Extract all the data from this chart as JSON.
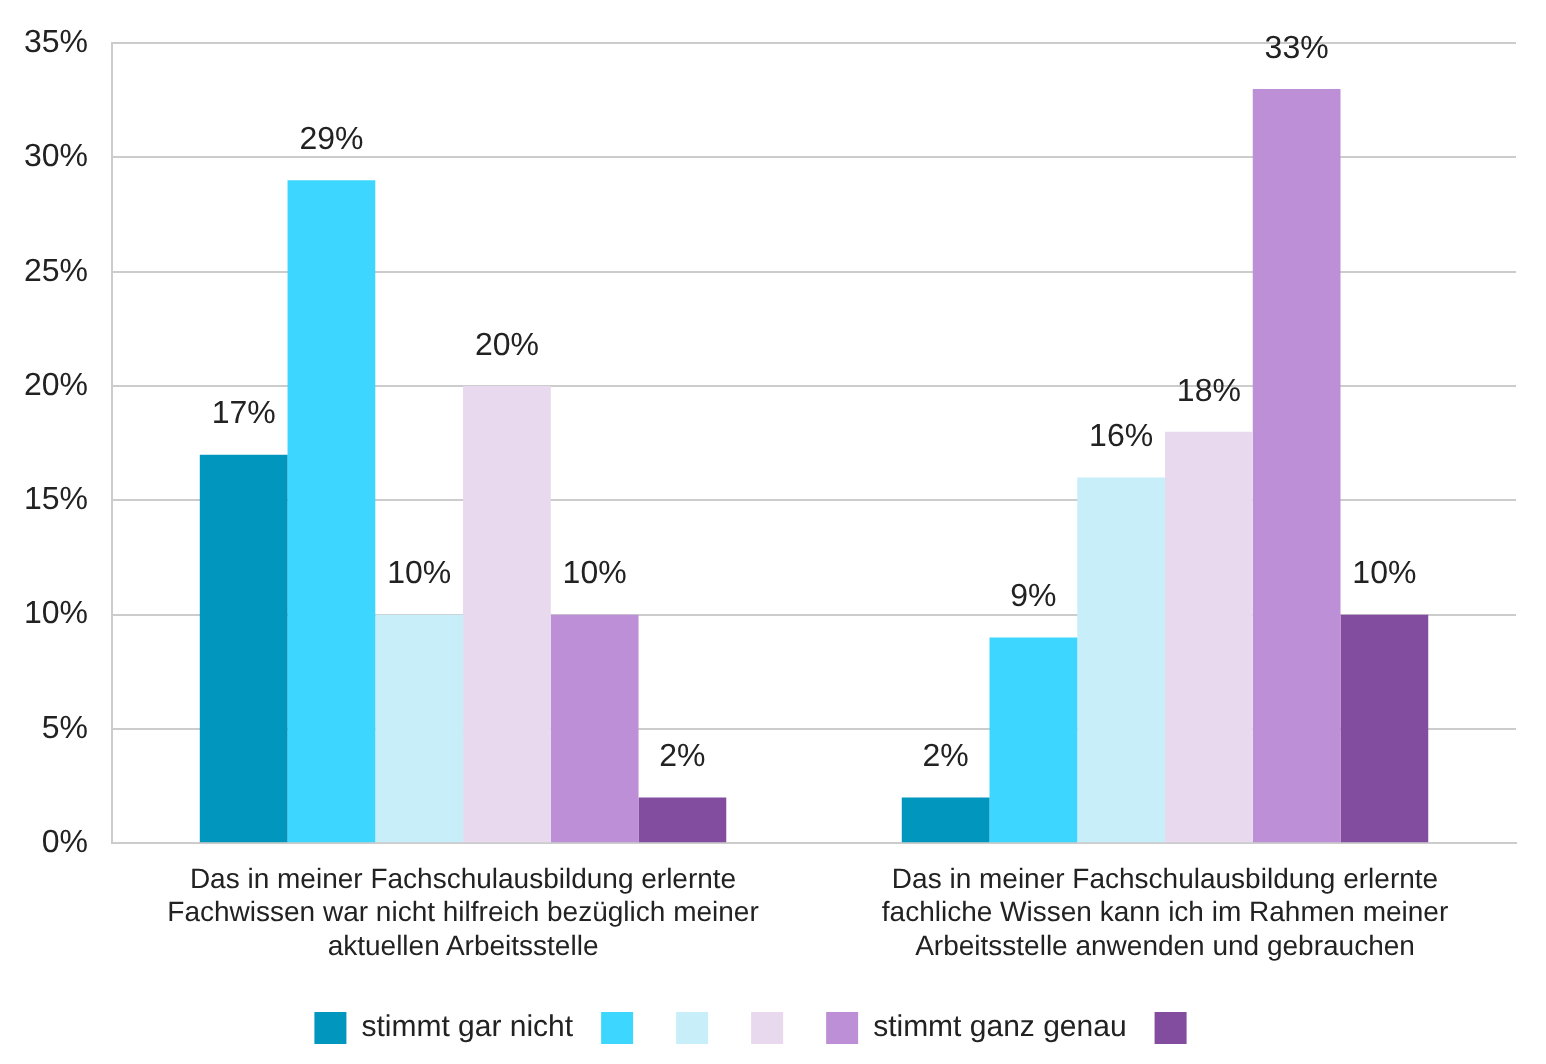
{
  "chart_data": {
    "type": "bar",
    "categories": [
      "Das in meiner Fachschulausbildung erlernte\nFachwissen war nicht hilfreich bezüglich meiner\naktuellen Arbeitsstelle",
      "Das in meiner Fachschulausbildung erlernte\nfachliche Wissen kann ich im Rahmen meiner\nArbeitsstelle anwenden und gebrauchen"
    ],
    "series": [
      {
        "name": "stimmt gar nicht",
        "color": "#0096be",
        "values": [
          17,
          2
        ],
        "value_labels": [
          "17%",
          "2%"
        ]
      },
      {
        "color": "#3dd6ff",
        "values": [
          29,
          9
        ],
        "value_labels": [
          "29%",
          "9%"
        ]
      },
      {
        "color": "#c8eefa",
        "values": [
          10,
          16
        ],
        "value_labels": [
          "10%",
          "16%"
        ]
      },
      {
        "color": "#e8d9ee",
        "values": [
          20,
          18
        ],
        "value_labels": [
          "20%",
          "18%"
        ]
      },
      {
        "name": "stimmt ganz genau",
        "color": "#bd8fd6",
        "values": [
          10,
          33
        ],
        "value_labels": [
          "10%",
          "33%"
        ]
      },
      {
        "color": "#824c9f",
        "values": [
          2,
          10
        ],
        "value_labels": [
          "2%",
          "10%"
        ]
      }
    ],
    "ylim": [
      0,
      35
    ],
    "yticks": [
      {
        "value": 0,
        "label": "0%"
      },
      {
        "value": 5,
        "label": "5%"
      },
      {
        "value": 10,
        "label": "10%"
      },
      {
        "value": 15,
        "label": "15%"
      },
      {
        "value": 20,
        "label": "20%"
      },
      {
        "value": 25,
        "label": "25%"
      },
      {
        "value": 30,
        "label": "30%"
      },
      {
        "value": 35,
        "label": "35%"
      }
    ],
    "grid": "y",
    "legend": "bottom"
  }
}
